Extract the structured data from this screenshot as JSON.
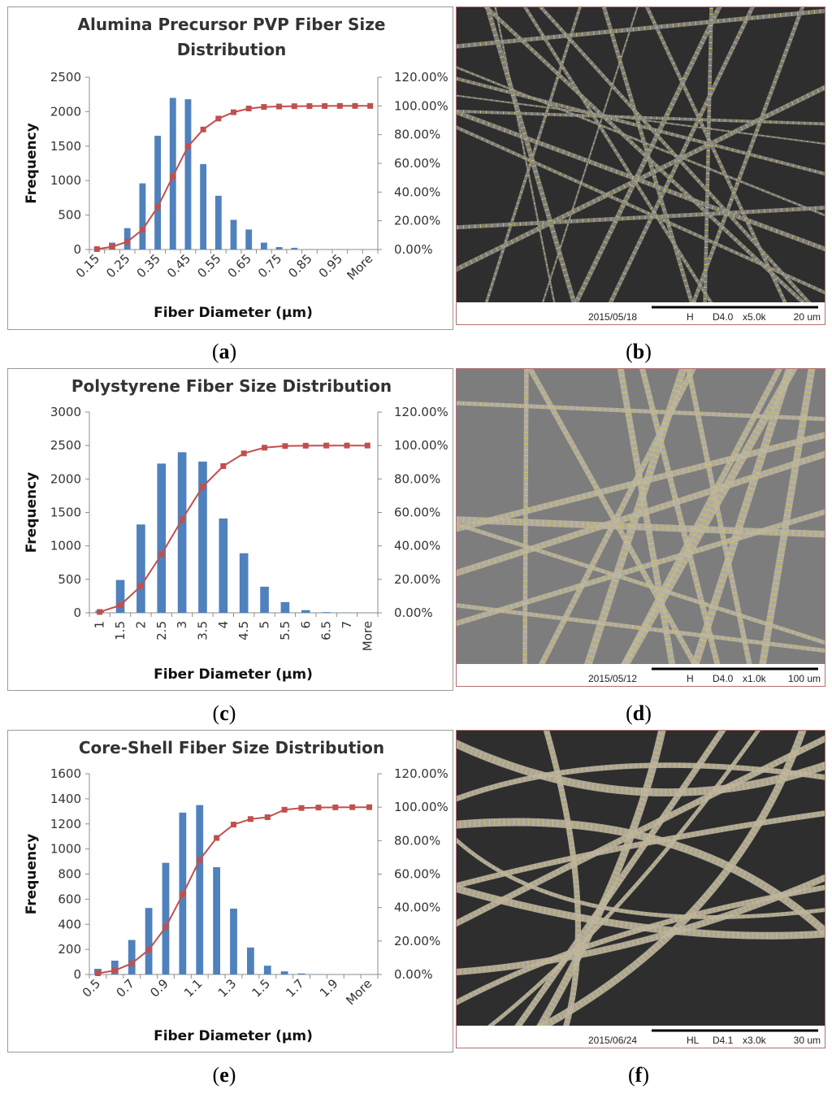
{
  "captions": {
    "a": "a",
    "b": "b",
    "c": "c",
    "d": "d",
    "e": "e",
    "f": "f"
  },
  "colors": {
    "bars": "#4f81bd",
    "cumulative": "#c0504d",
    "axis": "#8c8c8c"
  },
  "chart_data": [
    {
      "type": "bar",
      "title": "Alumina Precursor PVP Fiber Size Distribution",
      "title_lines": [
        "Alumina Precursor PVP Fiber Size",
        "Distribution"
      ],
      "xlabel": "Fiber Diameter (μm)",
      "ylabel": "Frequency",
      "tick_rotation": -45,
      "categories": [
        "0.15",
        "0.2",
        "0.25",
        "0.3",
        "0.35",
        "0.4",
        "0.45",
        "0.5",
        "0.55",
        "0.6",
        "0.65",
        "0.7",
        "0.75",
        "0.8",
        "0.85",
        "0.9",
        "0.95",
        "1",
        "More"
      ],
      "labeled_categories": [
        "0.15",
        "0.25",
        "0.35",
        "0.45",
        "0.55",
        "0.65",
        "0.75",
        "0.85",
        "0.95",
        "More"
      ],
      "ylim": [
        0,
        2500
      ],
      "yticks": [
        0,
        500,
        1000,
        1500,
        2000,
        2500
      ],
      "y2lim": [
        0,
        120
      ],
      "y2ticks": [
        "0.00%",
        "20.00%",
        "40.00%",
        "60.00%",
        "80.00%",
        "100.00%",
        "120.00%"
      ],
      "series": [
        {
          "values": [
            0,
            100,
            310,
            960,
            1650,
            2200,
            2180,
            1240,
            780,
            430,
            290,
            100,
            35,
            25,
            5,
            3,
            2,
            0,
            0
          ]
        },
        {
          "values": [
            0.3,
            1.9,
            5.5,
            13.8,
            29.6,
            51.0,
            71.8,
            83.6,
            91.2,
            95.6,
            98.2,
            99.3,
            99.6,
            99.8,
            99.9,
            99.95,
            100,
            100,
            100
          ]
        }
      ]
    },
    {
      "type": "bar",
      "title": "Polystyrene Fiber Size Distribution",
      "title_lines": [
        "Polystyrene Fiber Size Distribution"
      ],
      "xlabel": "Fiber Diameter (μm)",
      "ylabel": "Frequency",
      "tick_rotation": -90,
      "categories": [
        "1",
        "1.5",
        "2",
        "2.5",
        "3",
        "3.5",
        "4",
        "4.5",
        "5",
        "5.5",
        "6",
        "6.5",
        "7",
        "More"
      ],
      "labeled_categories": [
        "1",
        "1.5",
        "2",
        "2.5",
        "3",
        "3.5",
        "4",
        "4.5",
        "5",
        "5.5",
        "6",
        "6.5",
        "7",
        "More"
      ],
      "ylim": [
        0,
        3000
      ],
      "yticks": [
        0,
        500,
        1000,
        1500,
        2000,
        2500,
        3000
      ],
      "y2lim": [
        0,
        120
      ],
      "y2ticks": [
        "0.00%",
        "20.00%",
        "40.00%",
        "60.00%",
        "80.00%",
        "100.00%",
        "120.00%"
      ],
      "series": [
        {
          "values": [
            30,
            490,
            1320,
            2230,
            2400,
            2260,
            1410,
            890,
            390,
            160,
            40,
            10,
            5,
            0
          ]
        },
        {
          "values": [
            0.5,
            4.5,
            16.0,
            35.0,
            55.8,
            75.4,
            87.7,
            95.3,
            98.7,
            99.7,
            99.9,
            100,
            100,
            100
          ]
        }
      ]
    },
    {
      "type": "bar",
      "title": "Core-Shell Fiber Size Distribution",
      "title_lines": [
        "Core-Shell Fiber Size Distribution"
      ],
      "xlabel": "Fiber Diameter (μm)",
      "ylabel": "Frequency",
      "tick_rotation": -45,
      "categories": [
        "0.5",
        "0.6",
        "0.7",
        "0.8",
        "0.9",
        "1",
        "1.1",
        "1.2",
        "1.3",
        "1.4",
        "1.5",
        "1.6",
        "1.7",
        "1.8",
        "1.9",
        "2",
        "More"
      ],
      "labeled_categories": [
        "0.5",
        "0.7",
        "0.9",
        "1.1",
        "1.3",
        "1.5",
        "1.7",
        "1.9",
        "More"
      ],
      "ylim": [
        0,
        1600
      ],
      "yticks": [
        0,
        200,
        400,
        600,
        800,
        1000,
        1200,
        1400,
        1600
      ],
      "y2lim": [
        0,
        120
      ],
      "y2ticks": [
        "0.00%",
        "20.00%",
        "40.00%",
        "60.00%",
        "80.00%",
        "100.00%",
        "120.00%"
      ],
      "series": [
        {
          "values": [
            45,
            110,
            275,
            530,
            890,
            1290,
            1350,
            855,
            525,
            215,
            70,
            25,
            8,
            3,
            1,
            0,
            0
          ]
        },
        {
          "values": [
            0.7,
            2.4,
            6.6,
            14.7,
            28.3,
            47.9,
            68.5,
            81.6,
            89.6,
            92.9,
            94.0,
            98.5,
            99.5,
            99.8,
            99.9,
            100,
            100
          ]
        }
      ]
    }
  ],
  "sem_images": [
    {
      "date": "2015/05/18",
      "mode": "H",
      "wd": "D4.0",
      "mag": "x5.0k",
      "scale": "20 um",
      "tone": "dark"
    },
    {
      "date": "2015/05/12",
      "mode": "H",
      "wd": "D4.0",
      "mag": "x1.0k",
      "scale": "100 um",
      "tone": "light"
    },
    {
      "date": "2015/06/24",
      "mode": "HL",
      "wd": "D4.1",
      "mag": "x3.0k",
      "scale": "30 um",
      "tone": "dark"
    }
  ]
}
